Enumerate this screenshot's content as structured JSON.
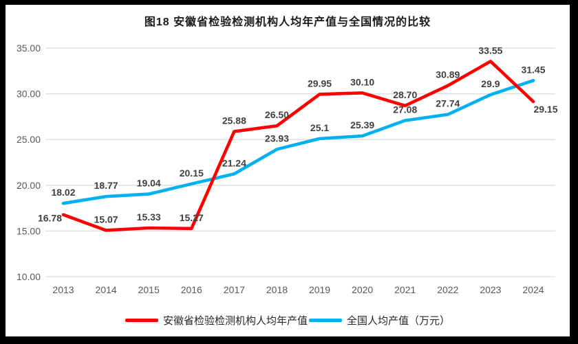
{
  "title": "图18 安徽省检验检测机构人均年产值与全国情况的比较",
  "colors": {
    "anhui_series": "#FF0000",
    "national_series": "#00B0F0",
    "gridline": "#DCDCDC",
    "axis_text": "#595959",
    "data_label_text": "#404040",
    "frame": "#000000",
    "background": "#FFFFFF"
  },
  "chart_data": {
    "type": "line",
    "title": "图18 安徽省检验检测机构人均年产值与全国情况的比较",
    "categories": [
      "2013",
      "2014",
      "2015",
      "2016",
      "2017",
      "2018",
      "2019",
      "2020",
      "2021",
      "2022",
      "2023",
      "2024"
    ],
    "series": [
      {
        "id": "anhui",
        "name": "安徽省检验检测机构人均年产值",
        "color": "#FF0000",
        "values": [
          16.78,
          15.07,
          15.33,
          15.27,
          25.88,
          26.5,
          29.95,
          30.1,
          28.7,
          30.89,
          33.55,
          29.15
        ],
        "labels": [
          "16.78",
          "15.07",
          "15.33",
          "15.27",
          "25.88",
          "26.50",
          "29.95",
          "30.10",
          "28.70",
          "30.89",
          "33.55",
          "29.15"
        ]
      },
      {
        "id": "national",
        "name": "全国人均产值（万元）",
        "color": "#00B0F0",
        "values": [
          18.02,
          18.77,
          19.04,
          20.15,
          21.24,
          23.93,
          25.1,
          25.39,
          27.08,
          27.74,
          29.9,
          31.45
        ],
        "labels": [
          "18.02",
          "18.77",
          "19.04",
          "20.15",
          "21.24",
          "23.93",
          "25.1",
          "25.39",
          "27.08",
          "27.74",
          "29.9",
          "31.45"
        ]
      }
    ],
    "ylim": [
      10,
      35
    ],
    "yticks": [
      10,
      15,
      20,
      25,
      30,
      35
    ],
    "ytick_labels": [
      "10.00",
      "15.00",
      "20.00",
      "25.00",
      "30.00",
      "35.00"
    ],
    "grid": "horizontal",
    "legend_position": "bottom",
    "data_labels": true
  }
}
